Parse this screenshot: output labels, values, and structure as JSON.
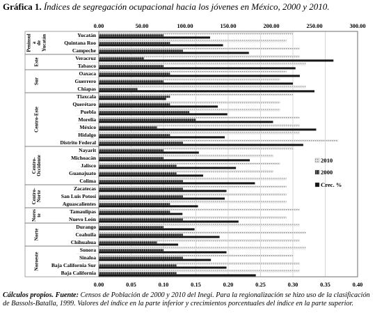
{
  "title": {
    "label": "Gráfica 1.",
    "text": "Índices de segregación ocupacional hacia los jóvenes en México, 2000 y 2010."
  },
  "caption": {
    "lead": "Cálculos propios.",
    "label": "Fuente:",
    "text": "Censos de Población de 2000 y 2010 del Inegi. Para la regionalización se hizo uso de la clasificación de Bassols-Batalla, 1999. Valores del índice en la parte inferior y crecimientos porcentuales del índice en la parte superior."
  },
  "chart_data": {
    "type": "bar",
    "orientation": "horizontal",
    "categories": [
      "Yucatán",
      "Quintana Roo",
      "Campeche",
      "Veracruz",
      "Tabasco",
      "Oaxaca",
      "Guerrero",
      "Chiapas",
      "Tlaxcala",
      "Querétaro",
      "Puebla",
      "Morelia",
      "México",
      "Hidalgo",
      "Distrito Federal",
      "Nayarit",
      "Michoacán",
      "Jalisco",
      "Guanajuato",
      "Colima",
      "Zacatecas",
      "San Luis Potosí",
      "Aguascalientes",
      "Tamaulipas",
      "Nuevo León",
      "Durango",
      "Coahuila",
      "Chihuahua",
      "Sonora",
      "Sinaloa",
      "Baja California Sur",
      "Baja California"
    ],
    "regions": [
      {
        "label": "Península de Yucatán",
        "lines": [
          "Peninsul",
          "a",
          "de",
          "Yucatán"
        ],
        "start": 0,
        "end": 2
      },
      {
        "label": "Este",
        "lines": [
          "Este"
        ],
        "start": 3,
        "end": 4
      },
      {
        "label": "Sur",
        "lines": [
          "Sur"
        ],
        "start": 5,
        "end": 7
      },
      {
        "label": "Centro-Este",
        "lines": [
          "Centro-Este"
        ],
        "start": 8,
        "end": 14
      },
      {
        "label": "Centro-Occidente",
        "lines": [
          "Centro-",
          "Occidente"
        ],
        "start": 15,
        "end": 19
      },
      {
        "label": "Centro-Norte",
        "lines": [
          "Centro-",
          "Norte"
        ],
        "start": 20,
        "end": 22
      },
      {
        "label": "Noreste",
        "lines": [
          "Nores",
          "te"
        ],
        "start": 23,
        "end": 24
      },
      {
        "label": "Norte",
        "lines": [
          "Norte"
        ],
        "start": 25,
        "end": 27
      },
      {
        "label": "Noroeste",
        "lines": [
          "Noroeste"
        ],
        "start": 28,
        "end": 31
      }
    ],
    "series": [
      {
        "name": "2010",
        "axis": "bottom",
        "color": "#c8c8c8",
        "pattern": "dotted",
        "values": [
          0.3,
          0.29,
          0.31,
          0.31,
          0.32,
          0.29,
          0.28,
          0.32,
          0.3,
          0.28,
          0.28,
          0.31,
          0.31,
          0.31,
          0.37,
          0.3,
          0.27,
          0.28,
          0.27,
          0.29,
          0.29,
          0.29,
          0.29,
          0.31,
          0.29,
          0.31,
          0.32,
          0.31,
          0.32,
          0.3,
          0.31,
          0.31
        ]
      },
      {
        "name": "2000",
        "axis": "bottom",
        "color": "#3a3a3a",
        "pattern": "striped",
        "values": [
          0.1,
          0.11,
          0.13,
          0.07,
          0.1,
          0.11,
          0.1,
          0.06,
          0.11,
          0.11,
          0.14,
          0.15,
          0.09,
          0.11,
          0.13,
          0.1,
          0.1,
          0.12,
          0.12,
          0.13,
          0.13,
          0.13,
          0.11,
          0.11,
          0.13,
          0.1,
          0.13,
          0.09,
          0.1,
          0.13,
          0.12,
          0.12
        ]
      },
      {
        "name": "Crec. %",
        "axis": "top",
        "color": "#151515",
        "pattern": "solid",
        "values": [
          129,
          144,
          174,
          272,
          228,
          233,
          225,
          250,
          78,
          138,
          149,
          202,
          252,
          146,
          237,
          116,
          175,
          159,
          121,
          181,
          148,
          146,
          115,
          97,
          162,
          111,
          140,
          92,
          148,
          130,
          148,
          182
        ]
      }
    ],
    "axes": {
      "top": {
        "range": [
          0,
          300
        ],
        "ticks": [
          "0.00",
          "50.00",
          "100.00",
          "150.00",
          "200.00",
          "250.00",
          "300.00"
        ]
      },
      "bottom": {
        "range": [
          0,
          0.4
        ],
        "ticks": [
          "0.00",
          "0.05",
          "0.10",
          "0.15",
          "0.20",
          "0.25",
          "0.30",
          "0.35",
          "0.40"
        ]
      }
    },
    "grid": true,
    "legend": {
      "position": "right",
      "entries": [
        "2010",
        "2000",
        "Crec. %"
      ]
    }
  }
}
